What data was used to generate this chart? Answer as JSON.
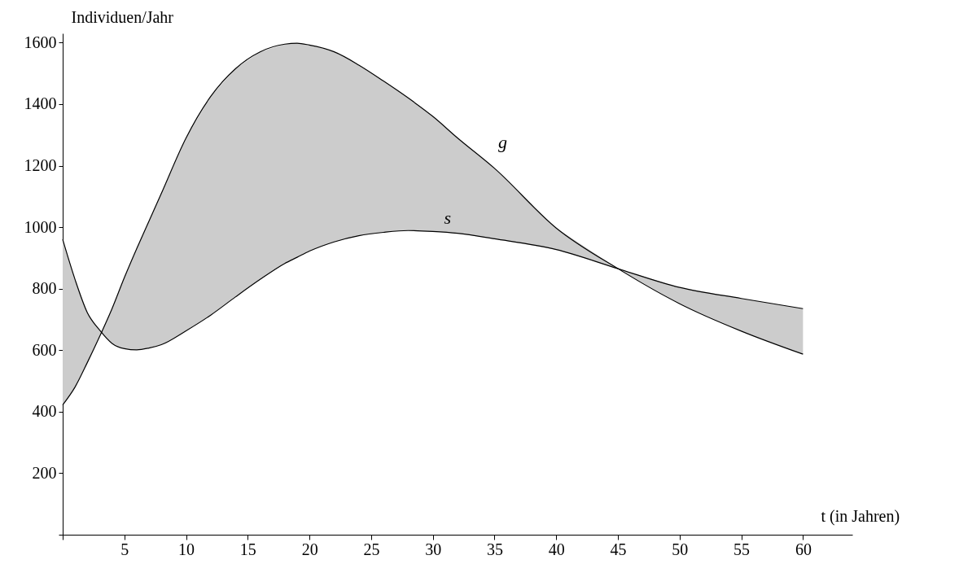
{
  "chart_data": {
    "type": "line",
    "xlabel": "t (in Jahren)",
    "ylabel": "Individuen/Jahr",
    "x": [
      0,
      1,
      2,
      3,
      4,
      5,
      6,
      7,
      8,
      10,
      12,
      14,
      16,
      18,
      19,
      20,
      22,
      24,
      26,
      28,
      30,
      32,
      35,
      40,
      45,
      50,
      55,
      60
    ],
    "series": [
      {
        "name": "g",
        "color": "#000000",
        "values": [
          422,
          480,
          560,
          645,
          735,
          836,
          930,
          1020,
          1110,
          1290,
          1425,
          1515,
          1570,
          1595,
          1598,
          1592,
          1570,
          1527,
          1475,
          1420,
          1360,
          1290,
          1191,
          997,
          865,
          751,
          662,
          587
        ]
      },
      {
        "name": "s",
        "color": "#000000",
        "values": [
          960,
          830,
          722,
          665,
          622,
          605,
          601,
          607,
          618,
          663,
          714,
          773,
          830,
          882,
          902,
          922,
          952,
          972,
          983,
          989,
          986,
          980,
          962,
          927,
          865,
          804,
          768,
          735
        ]
      }
    ],
    "xlim": [
      0,
      64
    ],
    "ylim": [
      0,
      1630
    ],
    "xticks": [
      {
        "value": 0,
        "label": null
      },
      5,
      10,
      15,
      20,
      25,
      30,
      35,
      40,
      45,
      50,
      55,
      60
    ],
    "yticks": [
      {
        "value": 0,
        "label": null
      },
      200,
      400,
      600,
      800,
      1000,
      1200,
      1400,
      1600
    ],
    "legend": false,
    "marker": "none",
    "line_style": "solid"
  }
}
